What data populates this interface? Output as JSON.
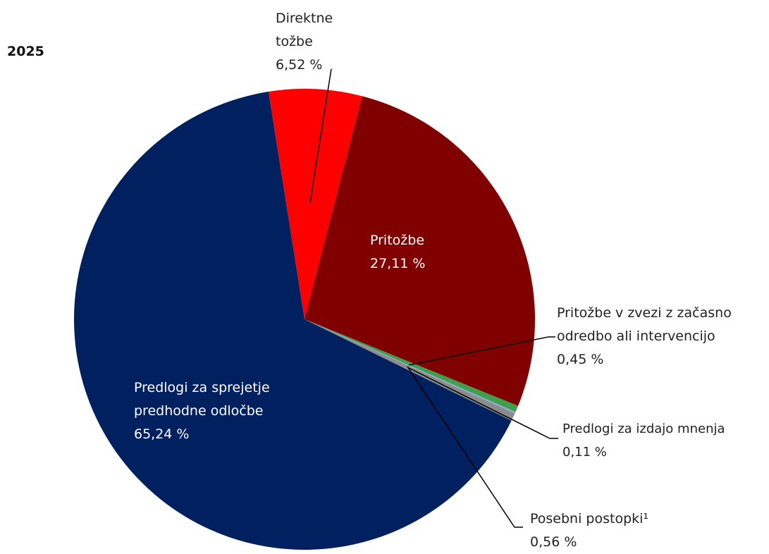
{
  "chart_data": {
    "type": "pie",
    "title": "2025",
    "labels": [
      "Direktne tožbe",
      "Pritožbe",
      "Pritožbe v zvezi z začasno odredbo ali intervencijo",
      "Predlogi za izdajo mnenja",
      "Posebni postopki¹",
      "Predlogi za sprejetje predhodne odločbe"
    ],
    "values": [
      6.52,
      27.11,
      0.45,
      0.11,
      0.56,
      65.24
    ],
    "value_labels": [
      "6,52 %",
      "27,11 %",
      "0,45 %",
      "0,11 %",
      "0,56 %",
      "65,24 %"
    ],
    "colors": [
      "#ff0000",
      "#800000",
      "#3f9f4a",
      "#8ea9db",
      "#8c8c8c",
      "#002060"
    ]
  }
}
